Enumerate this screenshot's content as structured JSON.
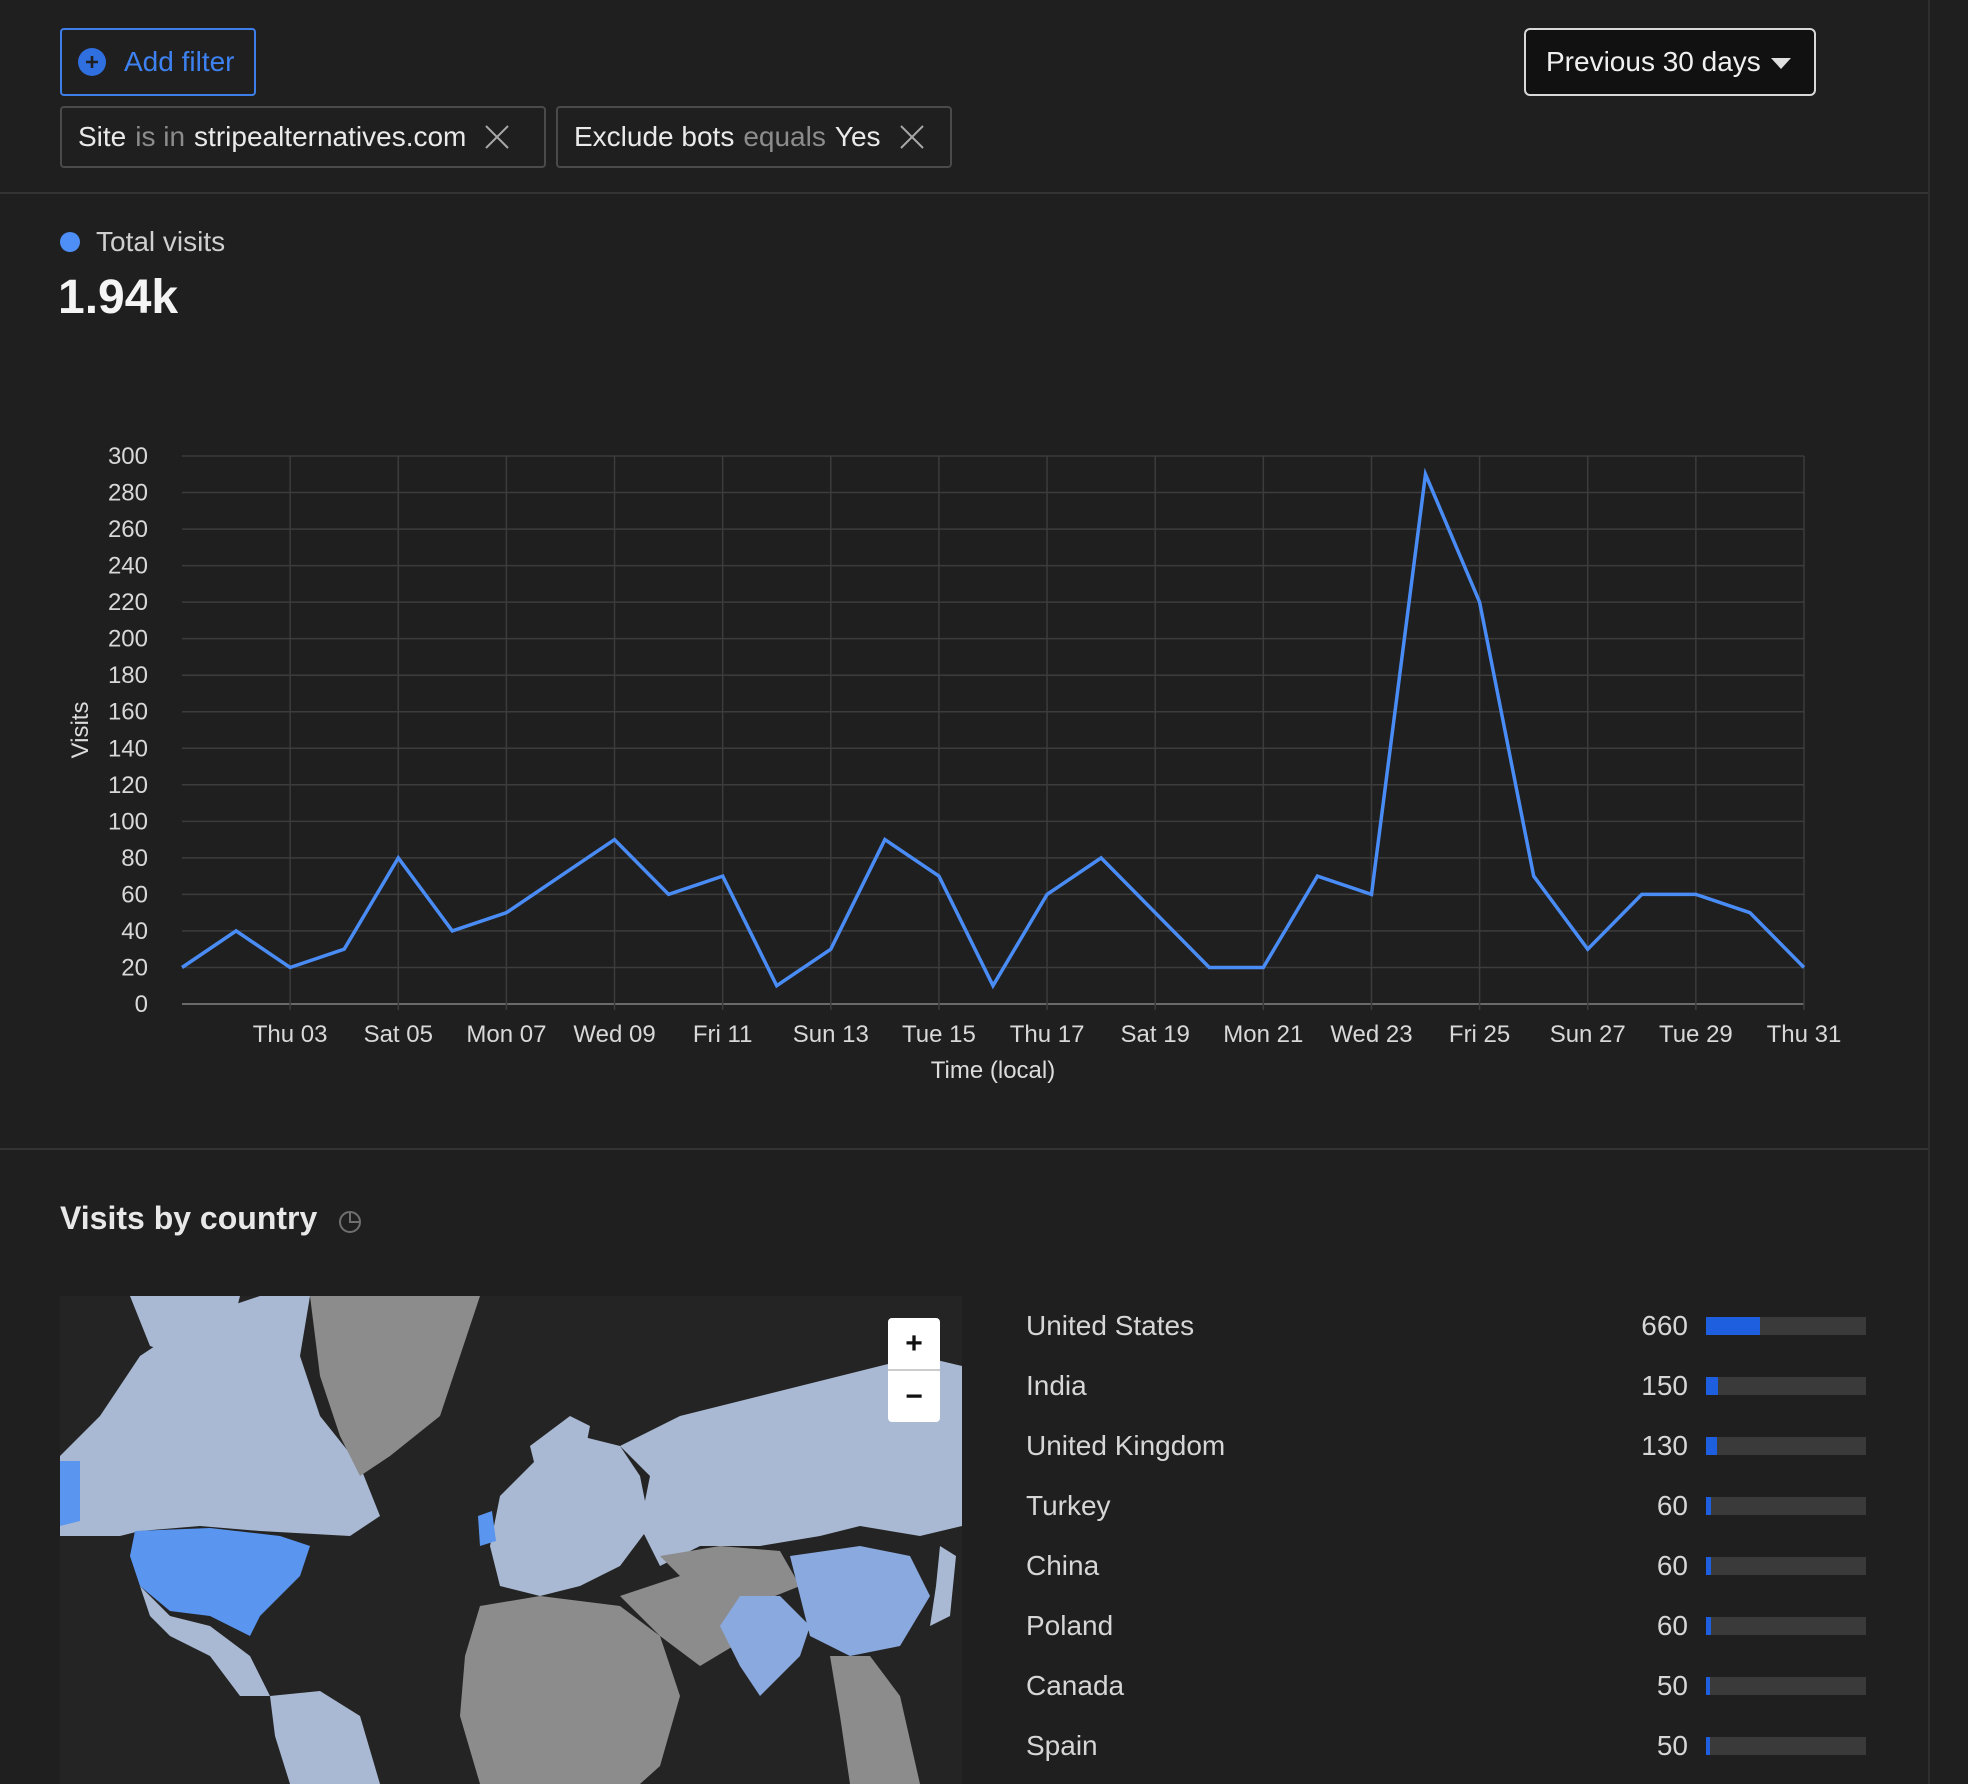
{
  "toolbar": {
    "add_filter_label": "Add filter",
    "date_range_label": "Previous 30 days"
  },
  "filters": [
    {
      "field": "Site",
      "operator": "is in",
      "value": "stripealternatives.com"
    },
    {
      "field": "Exclude bots",
      "operator": "equals",
      "value": "Yes"
    }
  ],
  "summary": {
    "series_label": "Total visits",
    "total": "1.94k"
  },
  "colors": {
    "accent": "#4d8ef7",
    "line": "#4a8cf5",
    "bar_fill": "#1e5fe0",
    "highlight_country": "#5a96f0"
  },
  "chart_data": {
    "type": "line",
    "xlabel": "Time (local)",
    "ylabel": "Visits",
    "ylim": [
      0,
      300
    ],
    "yticks": [
      0,
      20,
      40,
      60,
      80,
      100,
      120,
      140,
      160,
      180,
      200,
      220,
      240,
      260,
      280,
      300
    ],
    "x_tick_labels": [
      "Thu 03",
      "Sat 05",
      "Mon 07",
      "Wed 09",
      "Fri 11",
      "Sun 13",
      "Tue 15",
      "Thu 17",
      "Sat 19",
      "Mon 21",
      "Wed 23",
      "Fri 25",
      "Sun 27",
      "Tue 29",
      "Thu 31"
    ],
    "grid": true,
    "series": [
      {
        "name": "Total visits",
        "values": [
          20,
          40,
          20,
          30,
          80,
          40,
          50,
          70,
          90,
          60,
          70,
          10,
          30,
          90,
          70,
          10,
          60,
          80,
          50,
          20,
          20,
          70,
          60,
          290,
          220,
          70,
          30,
          60,
          60,
          50,
          20
        ]
      }
    ]
  },
  "countries": {
    "title": "Visits by country",
    "max_value": 1940,
    "items": [
      {
        "name": "United States",
        "value": 660
      },
      {
        "name": "India",
        "value": 150
      },
      {
        "name": "United Kingdom",
        "value": 130
      },
      {
        "name": "Turkey",
        "value": 60
      },
      {
        "name": "China",
        "value": 60
      },
      {
        "name": "Poland",
        "value": 60
      },
      {
        "name": "Canada",
        "value": 50
      },
      {
        "name": "Spain",
        "value": 50
      }
    ]
  },
  "map": {
    "zoom_in_label": "+",
    "zoom_out_label": "−"
  }
}
